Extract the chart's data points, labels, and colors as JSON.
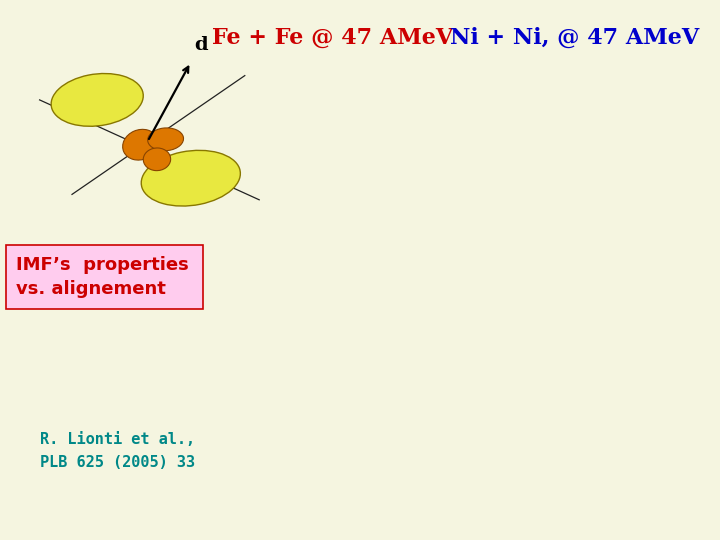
{
  "background_color": "#f5f5e0",
  "title_fe": "Fe + Fe @ 47 AMeV",
  "title_ni": "Ni + Ni, @ 47 AMeV",
  "title_fe_color": "#cc0000",
  "title_ni_color": "#0000cc",
  "title_fontsize": 16,
  "label_d": "d",
  "label_d_color": "#000000",
  "label_d_fontsize": 14,
  "imf_text_line1": "IMF’s  properties",
  "imf_text_line2": "vs. alignement",
  "imf_text_color": "#cc0000",
  "imf_box_edge_color": "#cc0000",
  "imf_box_face_color": "#ffccee",
  "imf_fontsize": 13,
  "ref_text_line1": "R. Lionti et al.,",
  "ref_text_line2": "PLB 625 (2005) 33",
  "ref_color": "#008888",
  "ref_fontsize": 11,
  "yellow_color": "#e8e840",
  "yellow_edge_color": "#887700",
  "orange_color": "#dd7700",
  "orange_edge_color": "#884400"
}
